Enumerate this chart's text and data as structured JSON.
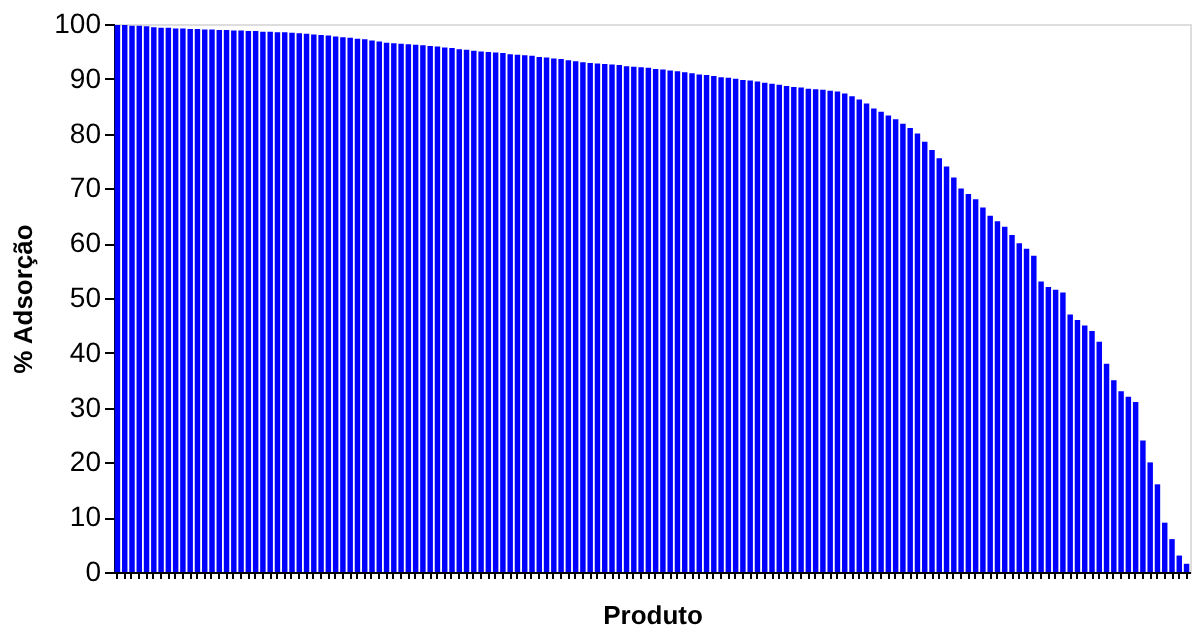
{
  "chart_data": {
    "type": "bar",
    "xlabel": "Produto",
    "ylabel": "% Adsorção",
    "categories": [
      null,
      null,
      null,
      null,
      null,
      null,
      null,
      null,
      null,
      null,
      null,
      null,
      null,
      null,
      null,
      null,
      null,
      null,
      null,
      null,
      null,
      null,
      null,
      null,
      null,
      null,
      null,
      null,
      null,
      null,
      null,
      null,
      null,
      null,
      null,
      null,
      null,
      null,
      null,
      null,
      null,
      null,
      null,
      null,
      null,
      null,
      null,
      null,
      null,
      null,
      null,
      null,
      null,
      null,
      null,
      null,
      null,
      null,
      null,
      null,
      null,
      null,
      null,
      null,
      null,
      null,
      null,
      null,
      null,
      null,
      null,
      null,
      null,
      null,
      null,
      null,
      null,
      null,
      null,
      null,
      null,
      null,
      null,
      null,
      null,
      null,
      null,
      null,
      null,
      null,
      null,
      null,
      null,
      null,
      null,
      null,
      null,
      null,
      null,
      null,
      null,
      null,
      null,
      null,
      null,
      null,
      null,
      null,
      null,
      null,
      null,
      null,
      null,
      null,
      null,
      null,
      null,
      null,
      null,
      null,
      null,
      null,
      null,
      null,
      null,
      null,
      null,
      null,
      null,
      null,
      null,
      null,
      null,
      null,
      null,
      null,
      null,
      null,
      null,
      null,
      null,
      null,
      null,
      null,
      null,
      null,
      null,
      null
    ],
    "values": [
      99.8,
      99.8,
      99.7,
      99.7,
      99.6,
      99.4,
      99.3,
      99.3,
      99.2,
      99.2,
      99.1,
      99.1,
      99,
      99,
      98.9,
      98.9,
      98.8,
      98.8,
      98.7,
      98.7,
      98.6,
      98.6,
      98.5,
      98.5,
      98.4,
      98.3,
      98.2,
      98.1,
      98,
      97.9,
      97.7,
      97.6,
      97.5,
      97.3,
      97.2,
      97,
      96.8,
      96.6,
      96.5,
      96.4,
      96.3,
      96.2,
      96.1,
      96,
      95.9,
      95.7,
      95.6,
      95.4,
      95.3,
      95.1,
      95,
      94.9,
      94.8,
      94.7,
      94.5,
      94.4,
      94.3,
      94.2,
      94,
      93.9,
      93.7,
      93.6,
      93.4,
      93.2,
      93,
      92.9,
      92.8,
      92.7,
      92.6,
      92.5,
      92.3,
      92.2,
      92.1,
      92,
      91.8,
      91.7,
      91.5,
      91.4,
      91.2,
      91,
      90.8,
      90.7,
      90.5,
      90.3,
      90.2,
      90,
      89.8,
      89.7,
      89.5,
      89.3,
      89.1,
      88.9,
      88.7,
      88.5,
      88.4,
      88.2,
      88.1,
      88,
      87.8,
      87.7,
      87.3,
      86.8,
      86.2,
      85.5,
      84.6,
      84,
      83.3,
      82.6,
      81.8,
      81,
      80,
      78.5,
      77,
      75.5,
      74,
      72,
      70,
      69,
      68,
      66.5,
      65,
      64,
      63,
      61.5,
      60,
      59,
      57.7,
      53,
      52,
      51.5,
      51,
      47,
      46,
      45,
      44,
      42,
      38,
      35,
      33,
      32,
      31,
      24,
      20,
      16,
      9,
      6,
      3,
      1.5
    ],
    "color": "#0000ff",
    "ylim": [
      0,
      100
    ],
    "yticks": [
      0,
      10,
      20,
      30,
      40,
      50,
      60,
      70,
      80,
      90,
      100
    ],
    "grid": false,
    "tick_labels": "y"
  }
}
